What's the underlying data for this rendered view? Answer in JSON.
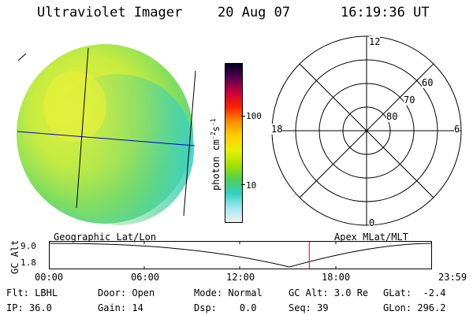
{
  "header": {
    "instrument": "Ultraviolet Imager",
    "date": "20 Aug 07",
    "time": "16:19:36 UT"
  },
  "colorbar": {
    "unit_label": "photon cm",
    "unit_exp1": "-2",
    "unit_mid": "s",
    "unit_exp2": "-1",
    "tick_100": "100",
    "tick_10": "10",
    "colors": [
      "#000020",
      "#5a0050",
      "#c8003c",
      "#ff2000",
      "#ff8c00",
      "#ffd000",
      "#e8f000",
      "#a8e000",
      "#50d050",
      "#30d0c0",
      "#a0e8f0",
      "#f0f0f0"
    ]
  },
  "polar": {
    "mlt_top": "12",
    "mlt_left": "18",
    "mlt_right": "6",
    "mlt_bottom": "0",
    "lat_60": "60",
    "lat_70": "70",
    "lat_80": "80"
  },
  "labels": {
    "geo": "Geographic Lat/Lon",
    "apex": "Apex MLat/MLT"
  },
  "altplot": {
    "ylabel": "GC Alt",
    "y_top": "9.0",
    "y_bottom": "1.8",
    "x_ticks": [
      "00:00",
      "06:00",
      "12:00",
      "18:00",
      "23:59"
    ],
    "current_time_fraction": 0.6803
  },
  "status": {
    "flt_label": "Flt:",
    "flt_value": "LBHL",
    "ip_label": "IP:",
    "ip_value": "36.0",
    "door_label": "Door:",
    "door_value": "Open",
    "gain_label": "Gain:",
    "gain_value": "14",
    "mode_label": "Mode:",
    "mode_value": "Normal",
    "dsp_label": "Dsp:",
    "dsp_value": "0.0",
    "gcalt_label": "GC Alt:",
    "gcalt_value": "3.0 Re",
    "seq_label": "Seq:",
    "seq_value": "39",
    "glat_label": "GLat:",
    "glat_value": "-2.4",
    "glon_label": "GLon:",
    "glon_value": "296.2"
  }
}
